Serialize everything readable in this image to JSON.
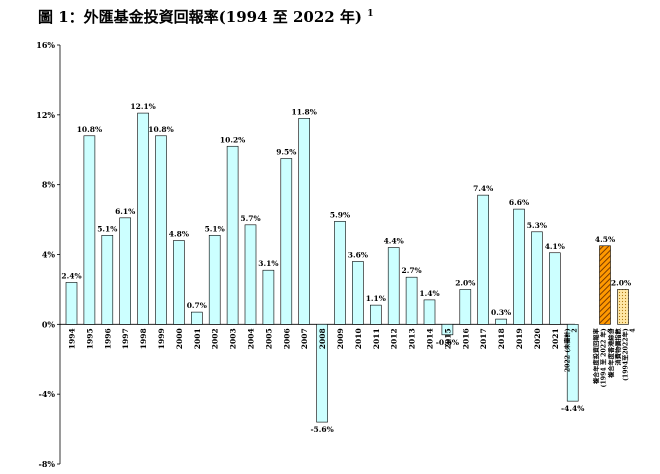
{
  "title": "圖 1：外匯基金投資回報率(1994 至 2022 年)",
  "title_footnote": "1",
  "chart_data": {
    "type": "bar",
    "ylim": [
      -8,
      16
    ],
    "ytick_values": [
      -8,
      -4,
      0,
      4,
      8,
      12,
      16
    ],
    "ytick_labels": [
      "-8%",
      "-4%",
      "0%",
      "4%",
      "8%",
      "12%",
      "16%"
    ],
    "grid": false,
    "colors": {
      "bar_fill": "#ccffff",
      "hatched_fill": "#ff9900",
      "hatched_lines": "#7a3b00",
      "dotted_fill": "#ffe7a6",
      "dotted_dots": "#b07a10",
      "outline": "#000000"
    },
    "categories": [
      "1994",
      "1995",
      "1996",
      "1997",
      "1998",
      "1999",
      "2000",
      "2001",
      "2002",
      "2003",
      "2004",
      "2005",
      "2006",
      "2007",
      "2008",
      "2009",
      "2010",
      "2011",
      "2012",
      "2013",
      "2014",
      "2015",
      "2016",
      "2017",
      "2018",
      "2019",
      "2020",
      "2021",
      "2022 (未審計) 2",
      "複合年度投資回報率 (1994 至 2022 年) 3",
      "複合年度香港綜合消費物價指數 (1994至2022年) 4"
    ],
    "values": [
      2.4,
      10.8,
      5.1,
      6.1,
      12.1,
      10.8,
      4.8,
      0.7,
      5.1,
      10.2,
      5.7,
      3.1,
      9.5,
      11.8,
      -5.6,
      5.9,
      3.6,
      1.1,
      4.4,
      2.7,
      1.4,
      -0.6,
      2.0,
      7.4,
      0.3,
      6.6,
      5.3,
      4.1,
      -4.4,
      4.5,
      2.0
    ],
    "data_labels": [
      "2.4%",
      "10.8%",
      "5.1%",
      "6.1%",
      "12.1%",
      "10.8%",
      "4.8%",
      "0.7%",
      "5.1%",
      "10.2%",
      "5.7%",
      "3.1%",
      "9.5%",
      "11.8%",
      "-5.6%",
      "5.9%",
      "3.6%",
      "1.1%",
      "4.4%",
      "2.7%",
      "1.4%",
      "-0.6%",
      "2.0%",
      "7.4%",
      "0.3%",
      "6.6%",
      "5.3%",
      "4.1%",
      "-4.4%",
      "4.5%",
      "2.0%"
    ],
    "special_category_lines": [
      [
        "2022 (未審計)",
        "2"
      ],
      [
        "複合年度投資回報率",
        "(1994 至 2022 年)",
        "3"
      ],
      [
        "複合年度香港綜合",
        "消費物價指數",
        "(1994至2022年)",
        "4"
      ]
    ]
  }
}
